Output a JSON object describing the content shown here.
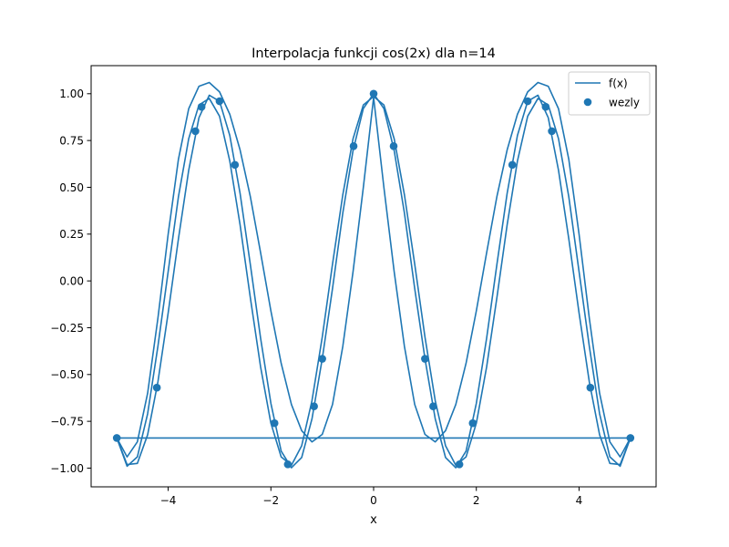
{
  "chart_data": {
    "type": "line",
    "title": "Interpolacja funkcji cos(2x) dla n=14",
    "xlabel": "x",
    "ylabel": "",
    "xlim": [
      -5.5,
      5.5
    ],
    "ylim": [
      -1.1,
      1.15
    ],
    "xticks": [
      -4,
      -2,
      0,
      2,
      4
    ],
    "xtick_labels": [
      "−4",
      "−2",
      "0",
      "2",
      "4"
    ],
    "yticks": [
      -1.0,
      -0.75,
      -0.5,
      -0.25,
      0.0,
      0.25,
      0.5,
      0.75,
      1.0
    ],
    "ytick_labels": [
      "−1.00",
      "−0.75",
      "−0.50",
      "−0.25",
      "0.00",
      "0.25",
      "0.50",
      "0.75",
      "1.00"
    ],
    "grid": false,
    "legend_position": "top-right",
    "color": "#1f77b4",
    "series": [
      {
        "name": "f(x)",
        "kind": "line",
        "x": [
          -5.0,
          5.0
        ],
        "y": [
          -0.839,
          -0.839
        ]
      },
      {
        "kind": "line",
        "x": [
          -5.0,
          -4.8,
          -4.6,
          -4.4,
          -4.2,
          -4.0,
          -3.8,
          -3.6,
          -3.4,
          -3.2,
          -3.0,
          -2.8,
          -2.6,
          -2.4,
          -2.2,
          -2.0,
          -1.8,
          -1.6,
          -1.4,
          -1.2,
          -1.0,
          -0.8,
          -0.6,
          -0.4,
          -0.2,
          0.0,
          0.2,
          0.4,
          0.6,
          0.8,
          1.0,
          1.2,
          1.4,
          1.6,
          1.8,
          2.0,
          2.2,
          2.4,
          2.6,
          2.8,
          3.0,
          3.2,
          3.4,
          3.6,
          3.8,
          4.0,
          4.2,
          4.4,
          4.6,
          4.8,
          5.0
        ],
        "y": [
          -0.839,
          -0.981,
          -0.975,
          -0.822,
          -0.54,
          -0.171,
          0.225,
          0.591,
          0.872,
          0.992,
          0.96,
          0.777,
          0.468,
          0.087,
          -0.307,
          -0.654,
          -0.909,
          -0.998,
          -0.943,
          -0.737,
          -0.416,
          -0.04,
          0.362,
          0.697,
          0.921,
          1.0,
          0.921,
          0.697,
          0.362,
          -0.04,
          -0.416,
          -0.737,
          -0.943,
          -0.998,
          -0.909,
          -0.654,
          -0.307,
          0.087,
          0.468,
          0.777,
          0.96,
          0.992,
          0.872,
          0.591,
          0.225,
          -0.171,
          -0.54,
          -0.822,
          -0.975,
          -0.981,
          -0.839
        ]
      },
      {
        "kind": "line",
        "x": [
          -5.0,
          -4.8,
          -4.6,
          -4.4,
          -4.2,
          -4.0,
          -3.8,
          -3.6,
          -3.4,
          -3.2,
          -3.0,
          -2.8,
          -2.6,
          -2.4,
          -2.2,
          -2.0,
          -1.8,
          -1.6,
          -1.4,
          -1.2,
          -1.0,
          -0.8,
          -0.6,
          -0.4,
          -0.2,
          0.0,
          0.2,
          0.4,
          0.6,
          0.8,
          1.0,
          1.2,
          1.4,
          1.6,
          1.8,
          2.0,
          2.2,
          2.4,
          2.6,
          2.8,
          3.0,
          3.2,
          3.4,
          3.6,
          3.8,
          4.0,
          4.2,
          4.4,
          4.6,
          4.8,
          5.0
        ],
        "y": [
          -0.839,
          -0.99,
          -0.94,
          -0.71,
          -0.35,
          0.05,
          0.45,
          0.76,
          0.94,
          0.975,
          0.88,
          0.64,
          0.3,
          -0.09,
          -0.46,
          -0.76,
          -0.94,
          -0.985,
          -0.88,
          -0.64,
          -0.3,
          0.09,
          0.46,
          0.76,
          0.94,
          0.985,
          0.94,
          0.76,
          0.46,
          0.09,
          -0.3,
          -0.64,
          -0.88,
          -0.985,
          -0.94,
          -0.76,
          -0.46,
          -0.09,
          0.3,
          0.64,
          0.88,
          0.975,
          0.94,
          0.76,
          0.45,
          0.05,
          -0.35,
          -0.71,
          -0.94,
          -0.99,
          -0.839
        ]
      },
      {
        "kind": "line",
        "x": [
          -5.0,
          -4.8,
          -4.6,
          -4.4,
          -4.2,
          -4.0,
          -3.8,
          -3.6,
          -3.4,
          -3.2,
          -3.0,
          -2.8,
          -2.6,
          -2.4,
          -2.2,
          -2.0,
          -1.8,
          -1.6,
          -1.4,
          -1.2,
          -1.0,
          -0.8,
          -0.6,
          -0.4,
          -0.2,
          0.0,
          0.2,
          0.4,
          0.6,
          0.8,
          1.0,
          1.2,
          1.4,
          1.6,
          1.8,
          2.0,
          2.2,
          2.4,
          2.6,
          2.8,
          3.0,
          3.2,
          3.4,
          3.6,
          3.8,
          4.0,
          4.2,
          4.4,
          4.6,
          4.8,
          5.0
        ],
        "y": [
          -0.839,
          -0.94,
          -0.86,
          -0.6,
          -0.2,
          0.25,
          0.65,
          0.92,
          1.04,
          1.06,
          1.01,
          0.89,
          0.7,
          0.45,
          0.15,
          -0.16,
          -0.44,
          -0.66,
          -0.8,
          -0.86,
          -0.82,
          -0.66,
          -0.35,
          0.05,
          0.5,
          0.98,
          0.5,
          0.05,
          -0.35,
          -0.66,
          -0.82,
          -0.86,
          -0.8,
          -0.66,
          -0.44,
          -0.16,
          0.15,
          0.45,
          0.7,
          0.89,
          1.01,
          1.06,
          1.04,
          0.92,
          0.65,
          0.25,
          -0.2,
          -0.6,
          -0.86,
          -0.94,
          -0.839
        ]
      },
      {
        "name": "wezly",
        "kind": "scatter",
        "x": [
          -5.0,
          -4.22,
          -3.47,
          -3.35,
          -3.0,
          -2.7,
          -1.93,
          -1.67,
          -1.16,
          -1.0,
          -0.39,
          0.0,
          0.39,
          1.0,
          1.16,
          1.67,
          1.93,
          2.7,
          3.0,
          3.35,
          3.47,
          4.22,
          5.0
        ],
        "y": [
          -0.839,
          -0.57,
          0.8,
          0.93,
          0.96,
          0.62,
          -0.76,
          -0.98,
          -0.67,
          -0.416,
          0.72,
          1.0,
          0.72,
          -0.416,
          -0.67,
          -0.98,
          -0.76,
          0.62,
          0.96,
          0.93,
          0.8,
          -0.57,
          -0.839
        ]
      }
    ]
  }
}
